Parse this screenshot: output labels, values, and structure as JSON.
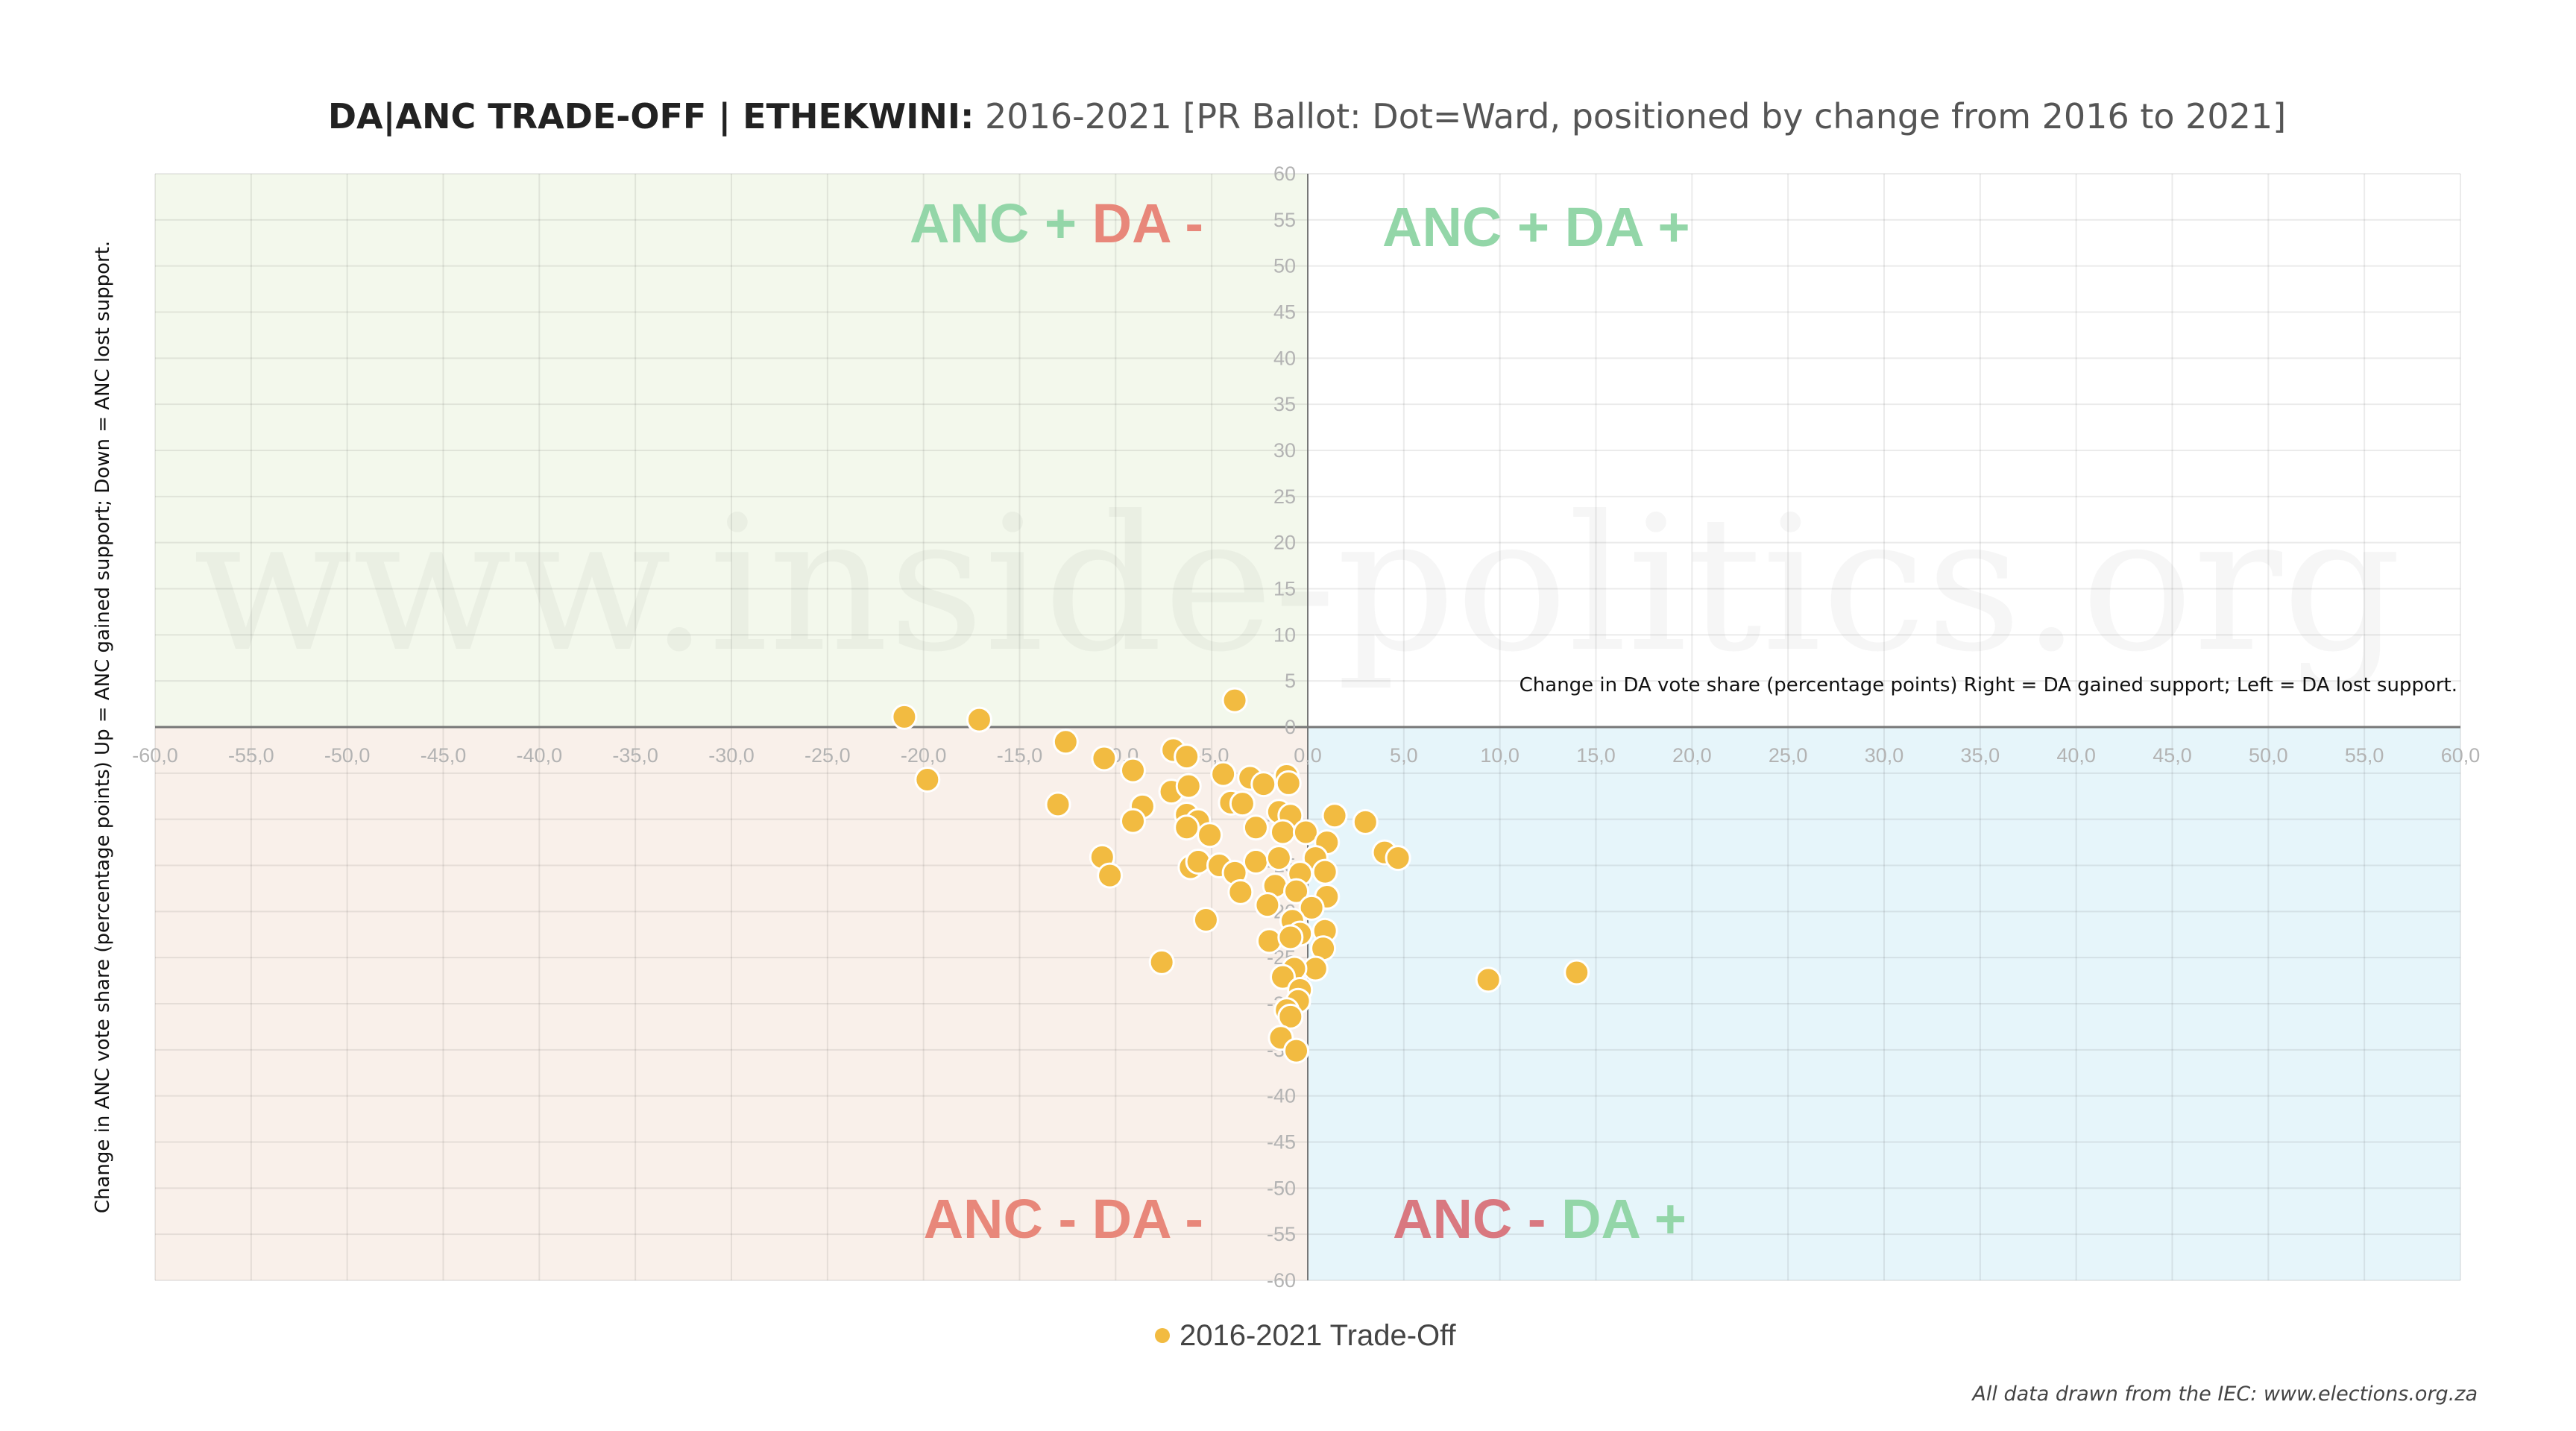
{
  "chart_data": {
    "type": "scatter",
    "title_bold": "DA|ANC TRADE-OFF | ETHEKWINI:",
    "title_rest": " 2016-2021 [PR Ballot: Dot=Ward, positioned by change from 2016 to 2021]",
    "xlabel": "Change in DA vote share (percentage points) Right = DA gained support; Left = DA lost support.",
    "ylabel": "Change in ANC vote share (percentage points) Up = ANC gained support; Down = ANC lost support.",
    "xlim": [
      -60,
      60
    ],
    "ylim": [
      -60,
      60
    ],
    "grid": true,
    "x_tick_labels": [
      "-60,0",
      "-55,0",
      "-50,0",
      "-45,0",
      "-40,0",
      "-35,0",
      "-30,0",
      "-25,0",
      "-20,0",
      "-15,0",
      "-10,0",
      "-5,0",
      "0,0",
      "5,0",
      "10,0",
      "15,0",
      "20,0",
      "25,0",
      "30,0",
      "35,0",
      "40,0",
      "45,0",
      "50,0",
      "55,0",
      "60,0"
    ],
    "y_tick_labels": [
      "60",
      "55",
      "50",
      "45",
      "40",
      "35",
      "30",
      "25",
      "20",
      "15",
      "10",
      "5",
      "0",
      "-5",
      "-10",
      "-15",
      "-20",
      "-25",
      "-30",
      "-35",
      "-40",
      "-45",
      "-50",
      "-55",
      "-60"
    ],
    "quadrants": {
      "top_left": [
        {
          "text": "ANC +",
          "color": "#93d6a8"
        },
        {
          "text": " DA -",
          "color": "#e8877a"
        }
      ],
      "top_right": [
        {
          "text": "ANC +",
          "color": "#93d6a8"
        },
        {
          "text": " DA +",
          "color": "#93d6a8"
        }
      ],
      "bottom_left": [
        {
          "text": "ANC -",
          "color": "#e8877a"
        },
        {
          "text": " DA -",
          "color": "#e8877a"
        }
      ],
      "bottom_right": [
        {
          "text": "ANC -",
          "color": "#d97880"
        },
        {
          "text": " DA +",
          "color": "#93d6a8"
        }
      ]
    },
    "legend": {
      "label": "2016-2021 Trade-Off",
      "placement": "bottom-center"
    },
    "series": [
      {
        "name": "2016-2021 Trade-Off",
        "color": "#f2bb41",
        "points": [
          [
            -21.0,
            1.1
          ],
          [
            -17.1,
            0.8
          ],
          [
            -12.6,
            -1.6
          ],
          [
            -19.8,
            -5.7
          ],
          [
            -10.6,
            -3.4
          ],
          [
            -9.1,
            -4.7
          ],
          [
            -7.0,
            -2.5
          ],
          [
            -6.3,
            -3.2
          ],
          [
            -4.4,
            -5.1
          ],
          [
            -3.0,
            -5.5
          ],
          [
            -2.3,
            -6.2
          ],
          [
            -1.1,
            -5.3
          ],
          [
            -1.0,
            -6.1
          ],
          [
            -13.0,
            -8.4
          ],
          [
            -7.1,
            -7.0
          ],
          [
            -6.2,
            -6.4
          ],
          [
            -8.6,
            -8.6
          ],
          [
            -9.1,
            -10.2
          ],
          [
            -6.3,
            -9.5
          ],
          [
            -5.7,
            -10.2
          ],
          [
            -6.3,
            -10.9
          ],
          [
            -5.1,
            -11.7
          ],
          [
            -4.0,
            -8.2
          ],
          [
            -3.4,
            -8.3
          ],
          [
            -2.7,
            -10.9
          ],
          [
            -1.5,
            -9.2
          ],
          [
            -0.9,
            -9.6
          ],
          [
            -1.3,
            -11.4
          ],
          [
            -0.1,
            -11.4
          ],
          [
            1.4,
            -9.6
          ],
          [
            3.0,
            -10.3
          ],
          [
            1.0,
            -12.5
          ],
          [
            4.0,
            -13.6
          ],
          [
            4.7,
            -14.2
          ],
          [
            -10.7,
            -14.1
          ],
          [
            -10.3,
            -16.1
          ],
          [
            -6.1,
            -15.2
          ],
          [
            -5.7,
            -14.6
          ],
          [
            -4.6,
            -15.0
          ],
          [
            -3.8,
            -15.8
          ],
          [
            -2.7,
            -14.6
          ],
          [
            -1.5,
            -14.2
          ],
          [
            0.4,
            -14.2
          ],
          [
            -0.4,
            -15.9
          ],
          [
            0.9,
            -15.7
          ],
          [
            -3.5,
            -17.9
          ],
          [
            -1.7,
            -17.2
          ],
          [
            -0.6,
            -17.8
          ],
          [
            1.0,
            -18.4
          ],
          [
            -2.1,
            -19.3
          ],
          [
            0.2,
            -19.6
          ],
          [
            -0.8,
            -21.0
          ],
          [
            -5.3,
            -20.9
          ],
          [
            0.9,
            -22.1
          ],
          [
            -2.0,
            -23.2
          ],
          [
            -0.4,
            -22.4
          ],
          [
            -0.9,
            -22.8
          ],
          [
            0.8,
            -24.0
          ],
          [
            -7.6,
            -25.5
          ],
          [
            0.4,
            -26.2
          ],
          [
            -0.7,
            -26.2
          ],
          [
            -1.3,
            -27.1
          ],
          [
            -0.4,
            -28.5
          ],
          [
            -0.5,
            -29.7
          ],
          [
            -1.1,
            -30.7
          ],
          [
            -0.9,
            -31.4
          ],
          [
            -1.4,
            -33.7
          ],
          [
            -0.6,
            -35.1
          ],
          [
            -3.8,
            2.9
          ],
          [
            9.4,
            -27.4
          ],
          [
            14.0,
            -26.6
          ]
        ]
      }
    ],
    "watermark": "www.inside-politics.org",
    "source_note": "All data drawn from the IEC: www.elections.org.za"
  }
}
